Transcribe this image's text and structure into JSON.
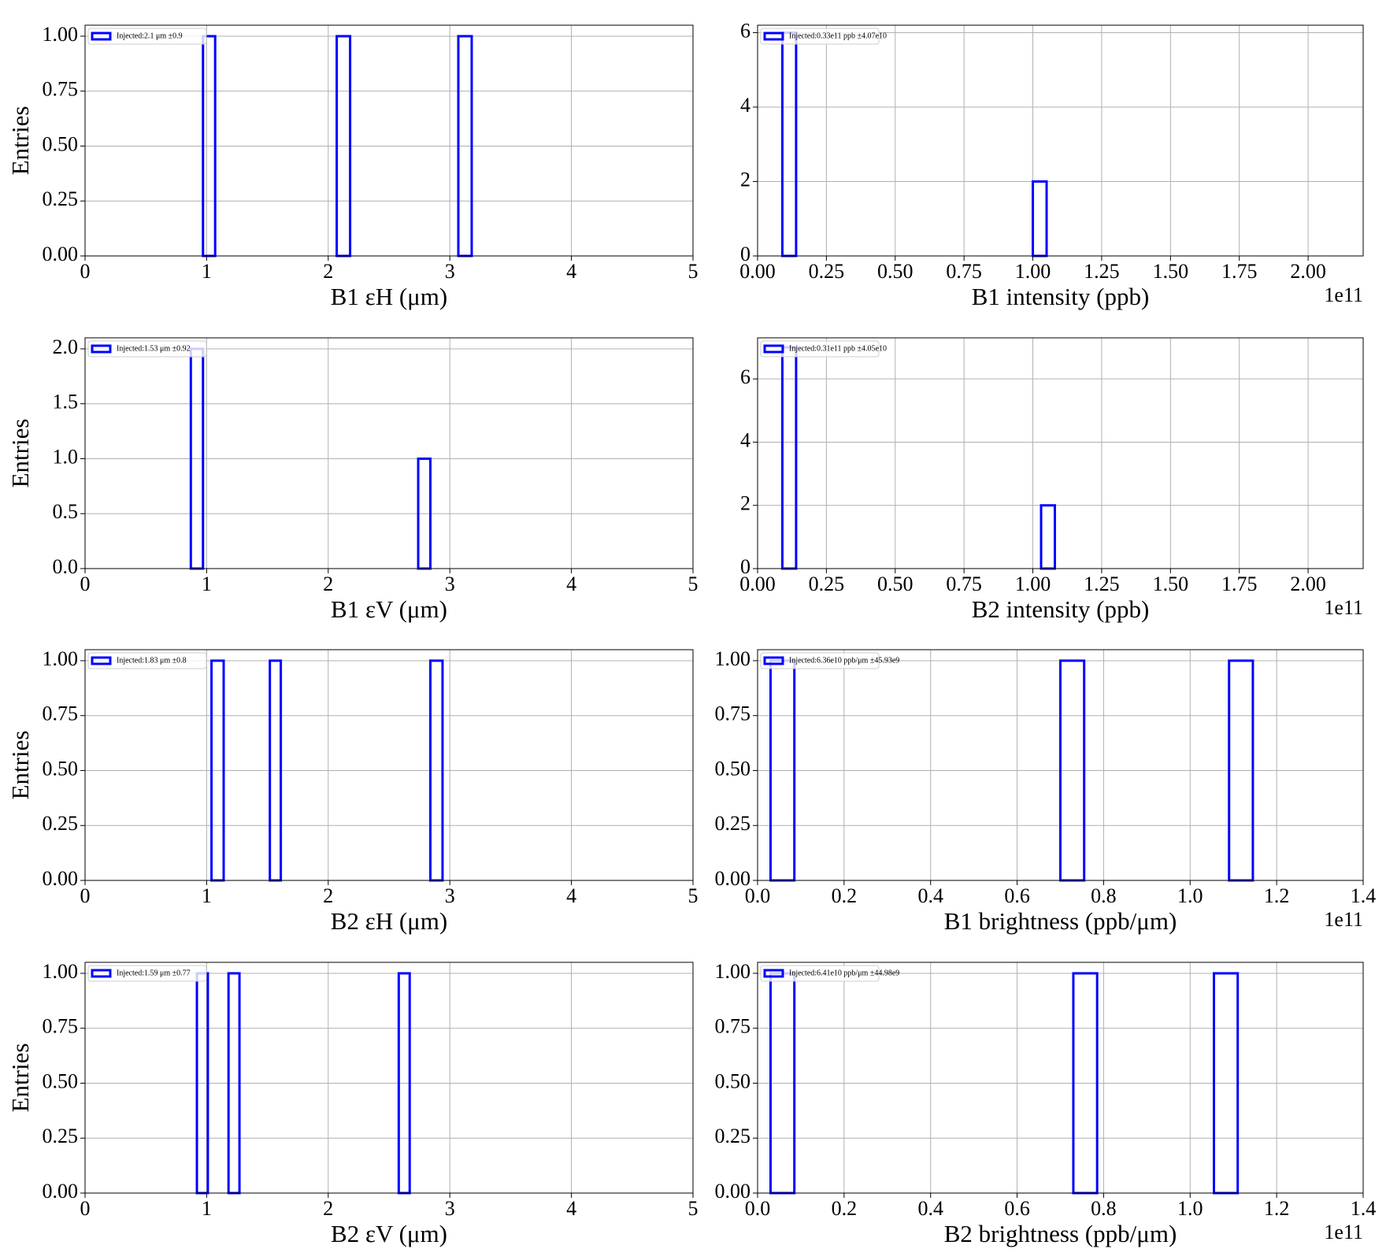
{
  "chart_data": [
    {
      "type": "histogram",
      "title_x": "B1 εH (μm)",
      "ylabel": "Entries",
      "legend": "Injected:2.1 μm ±0.9",
      "color": "#0000ff",
      "grid": true,
      "bins": [
        0.97,
        1.07,
        2.07,
        2.18,
        3.07,
        3.18
      ],
      "counts": [
        1,
        0,
        1,
        0,
        1
      ],
      "xlim": [
        0,
        5
      ],
      "xticks": [
        0,
        1,
        2,
        3,
        4,
        5
      ],
      "ylim": [
        0,
        1.05
      ],
      "yticks": [
        {
          "value": 0,
          "label": "0.00"
        },
        {
          "value": 0.25,
          "label": "0.25"
        },
        {
          "value": 0.5,
          "label": "0.50"
        },
        {
          "value": 0.75,
          "label": "0.75"
        },
        {
          "value": 1,
          "label": "1.00"
        }
      ]
    },
    {
      "type": "histogram",
      "title_x": "B1 intensity (ppb)",
      "offset_label": "1e11",
      "legend": "Injected:0.33e11 ppb ±4.07e10",
      "color": "#0000ff",
      "grid": true,
      "bins": [
        0.09,
        0.14,
        1.0,
        1.05
      ],
      "counts": [
        6,
        0,
        2
      ],
      "xlim": [
        0,
        2.2
      ],
      "xticks": [
        {
          "value": 0,
          "label": "0.00"
        },
        0.25,
        {
          "value": 0.5,
          "label": "0.50"
        },
        0.75,
        {
          "value": 1,
          "label": "1.00"
        },
        1.25,
        {
          "value": 1.5,
          "label": "1.50"
        },
        1.75,
        {
          "value": 2,
          "label": "2.00"
        }
      ],
      "ylim": [
        0,
        6.2
      ],
      "yticks": [
        0,
        2,
        4,
        6
      ]
    },
    {
      "type": "histogram",
      "title_x": "B1 εV (μm)",
      "ylabel": "Entries",
      "legend": "Injected:1.53 μm ±0.92",
      "color": "#0000ff",
      "grid": true,
      "bins": [
        0.87,
        0.97,
        2.74,
        2.84
      ],
      "counts": [
        2,
        0,
        1
      ],
      "xlim": [
        0,
        5
      ],
      "xticks": [
        0,
        1,
        2,
        3,
        4,
        5
      ],
      "ylim": [
        0,
        2.1
      ],
      "yticks": [
        {
          "value": 0,
          "label": "0.0"
        },
        0.5,
        {
          "value": 1,
          "label": "1.0"
        },
        1.5,
        {
          "value": 2,
          "label": "2.0"
        }
      ]
    },
    {
      "type": "histogram",
      "title_x": "B2 intensity (ppb)",
      "offset_label": "1e11",
      "legend": "Injected:0.31e11 ppb ±4.05e10",
      "color": "#0000ff",
      "grid": true,
      "bins": [
        0.09,
        0.14,
        1.03,
        1.08
      ],
      "counts": [
        7,
        0,
        2
      ],
      "xlim": [
        0,
        2.2
      ],
      "xticks": [
        {
          "value": 0,
          "label": "0.00"
        },
        0.25,
        {
          "value": 0.5,
          "label": "0.50"
        },
        0.75,
        {
          "value": 1,
          "label": "1.00"
        },
        1.25,
        {
          "value": 1.5,
          "label": "1.50"
        },
        1.75,
        {
          "value": 2,
          "label": "2.00"
        }
      ],
      "ylim": [
        0,
        7.3
      ],
      "yticks": [
        0,
        2,
        4,
        6
      ]
    },
    {
      "type": "histogram",
      "title_x": "B2 εH (μm)",
      "ylabel": "Entries",
      "legend": "Injected:1.83 μm ±0.8",
      "color": "#0000ff",
      "grid": true,
      "bins": [
        1.04,
        1.14,
        1.52,
        1.61,
        2.84,
        2.94
      ],
      "counts": [
        1,
        0,
        1,
        0,
        1
      ],
      "xlim": [
        0,
        5
      ],
      "xticks": [
        0,
        1,
        2,
        3,
        4,
        5
      ],
      "ylim": [
        0,
        1.05
      ],
      "yticks": [
        {
          "value": 0,
          "label": "0.00"
        },
        {
          "value": 0.25,
          "label": "0.25"
        },
        {
          "value": 0.5,
          "label": "0.50"
        },
        {
          "value": 0.75,
          "label": "0.75"
        },
        {
          "value": 1,
          "label": "1.00"
        }
      ]
    },
    {
      "type": "histogram",
      "title_x": "B1 brightness (ppb/μm)",
      "offset_label": "1e11",
      "legend": "Injected:6.36e10 ppb/μm ±45.93e9",
      "color": "#0000ff",
      "grid": true,
      "bins": [
        0.03,
        0.085,
        0.7,
        0.755,
        1.09,
        1.145
      ],
      "counts": [
        1,
        0,
        1,
        0,
        1
      ],
      "xlim": [
        0,
        1.4
      ],
      "xticks": [
        {
          "value": 0,
          "label": "0.0"
        },
        0.2,
        0.4,
        0.6,
        0.8,
        {
          "value": 1,
          "label": "1.0"
        },
        1.2,
        1.4
      ],
      "ylim": [
        0,
        1.05
      ],
      "yticks": [
        {
          "value": 0,
          "label": "0.00"
        },
        {
          "value": 0.25,
          "label": "0.25"
        },
        {
          "value": 0.5,
          "label": "0.50"
        },
        {
          "value": 0.75,
          "label": "0.75"
        },
        {
          "value": 1,
          "label": "1.00"
        }
      ]
    },
    {
      "type": "histogram",
      "title_x": "B2 εV (μm)",
      "ylabel": "Entries",
      "legend": "Injected:1.59 μm ±0.77",
      "color": "#0000ff",
      "grid": true,
      "bins": [
        0.92,
        1.01,
        1.18,
        1.27,
        2.58,
        2.67
      ],
      "counts": [
        1,
        0,
        1,
        0,
        1
      ],
      "xlim": [
        0,
        5
      ],
      "xticks": [
        0,
        1,
        2,
        3,
        4,
        5
      ],
      "ylim": [
        0,
        1.05
      ],
      "yticks": [
        {
          "value": 0,
          "label": "0.00"
        },
        {
          "value": 0.25,
          "label": "0.25"
        },
        {
          "value": 0.5,
          "label": "0.50"
        },
        {
          "value": 0.75,
          "label": "0.75"
        },
        {
          "value": 1,
          "label": "1.00"
        }
      ]
    },
    {
      "type": "histogram",
      "title_x": "B2 brightness (ppb/μm)",
      "offset_label": "1e11",
      "legend": "Injected:6.41e10 ppb/μm ±44.98e9",
      "color": "#0000ff",
      "grid": true,
      "bins": [
        0.03,
        0.085,
        0.73,
        0.785,
        1.055,
        1.11
      ],
      "counts": [
        1,
        0,
        1,
        0,
        1
      ],
      "xlim": [
        0,
        1.4
      ],
      "xticks": [
        {
          "value": 0,
          "label": "0.0"
        },
        0.2,
        0.4,
        0.6,
        0.8,
        {
          "value": 1,
          "label": "1.0"
        },
        1.2,
        1.4
      ],
      "ylim": [
        0,
        1.05
      ],
      "yticks": [
        {
          "value": 0,
          "label": "0.00"
        },
        {
          "value": 0.25,
          "label": "0.25"
        },
        {
          "value": 0.5,
          "label": "0.50"
        },
        {
          "value": 0.75,
          "label": "0.75"
        },
        {
          "value": 1,
          "label": "1.00"
        }
      ]
    }
  ]
}
